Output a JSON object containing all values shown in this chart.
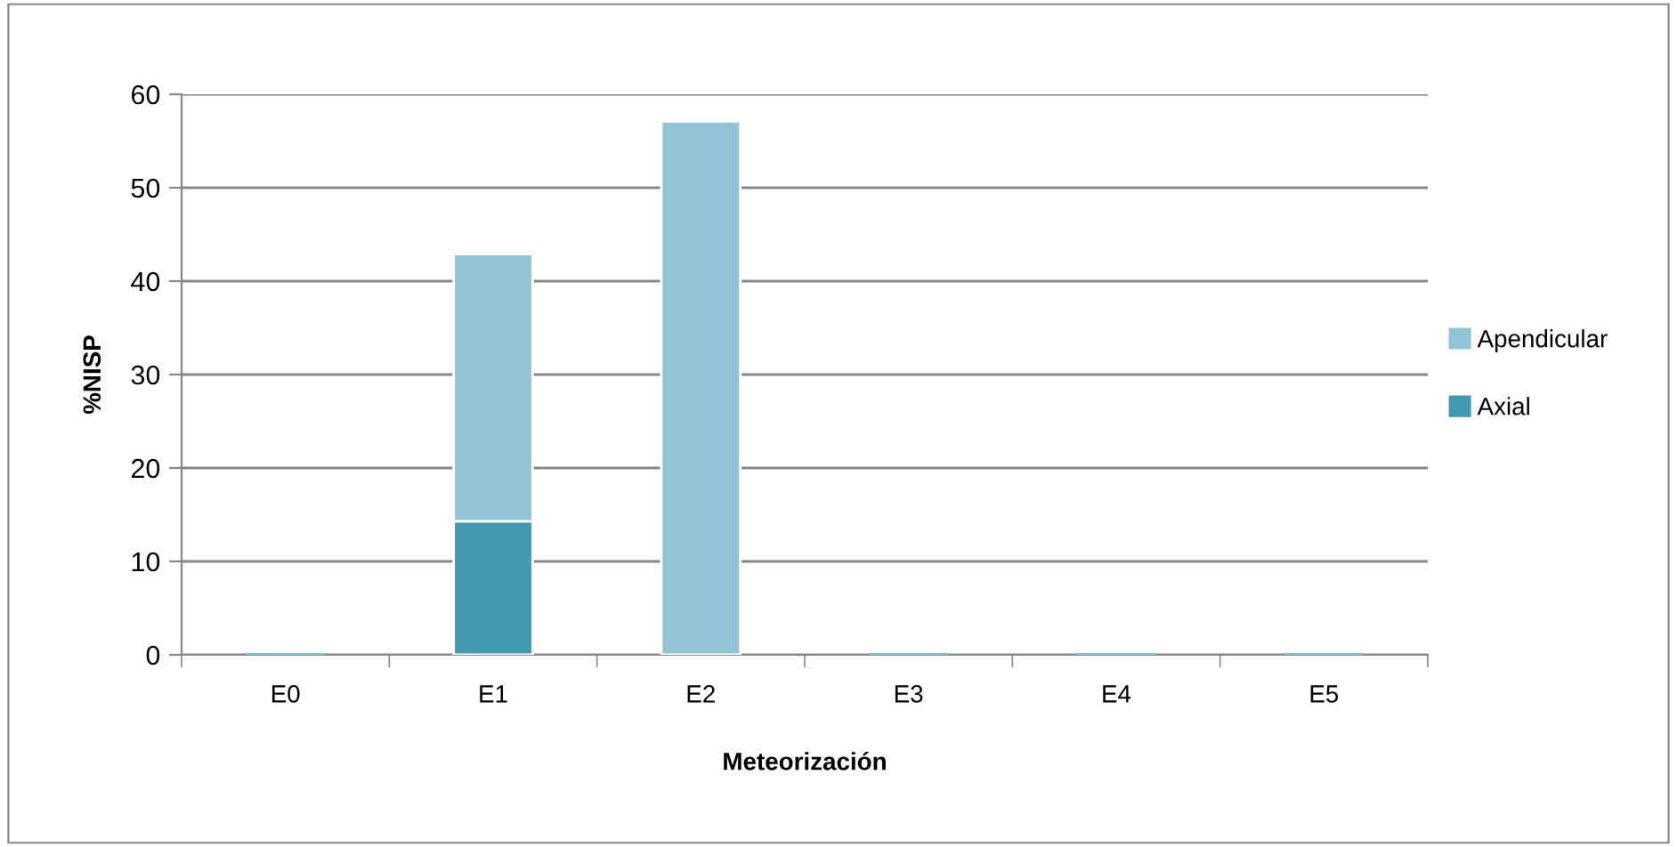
{
  "chart_data": {
    "type": "bar",
    "xlabel": "Meteorización",
    "ylabel": "%NISP",
    "categories": [
      "E0",
      "E1",
      "E2",
      "E3",
      "E4",
      "E5"
    ],
    "stacked": true,
    "series": [
      {
        "name": "Axial",
        "color": "#4299b0",
        "values": [
          0,
          14.3,
          0,
          0,
          0,
          0
        ]
      },
      {
        "name": "Apendicular",
        "color": "#93c4d5",
        "values": [
          0,
          28.6,
          57.1,
          0,
          0,
          0
        ]
      }
    ],
    "ylim": [
      0,
      60
    ],
    "yticks": [
      0,
      10,
      20,
      30,
      40,
      50,
      60
    ],
    "grid": "y",
    "legend": "right"
  }
}
